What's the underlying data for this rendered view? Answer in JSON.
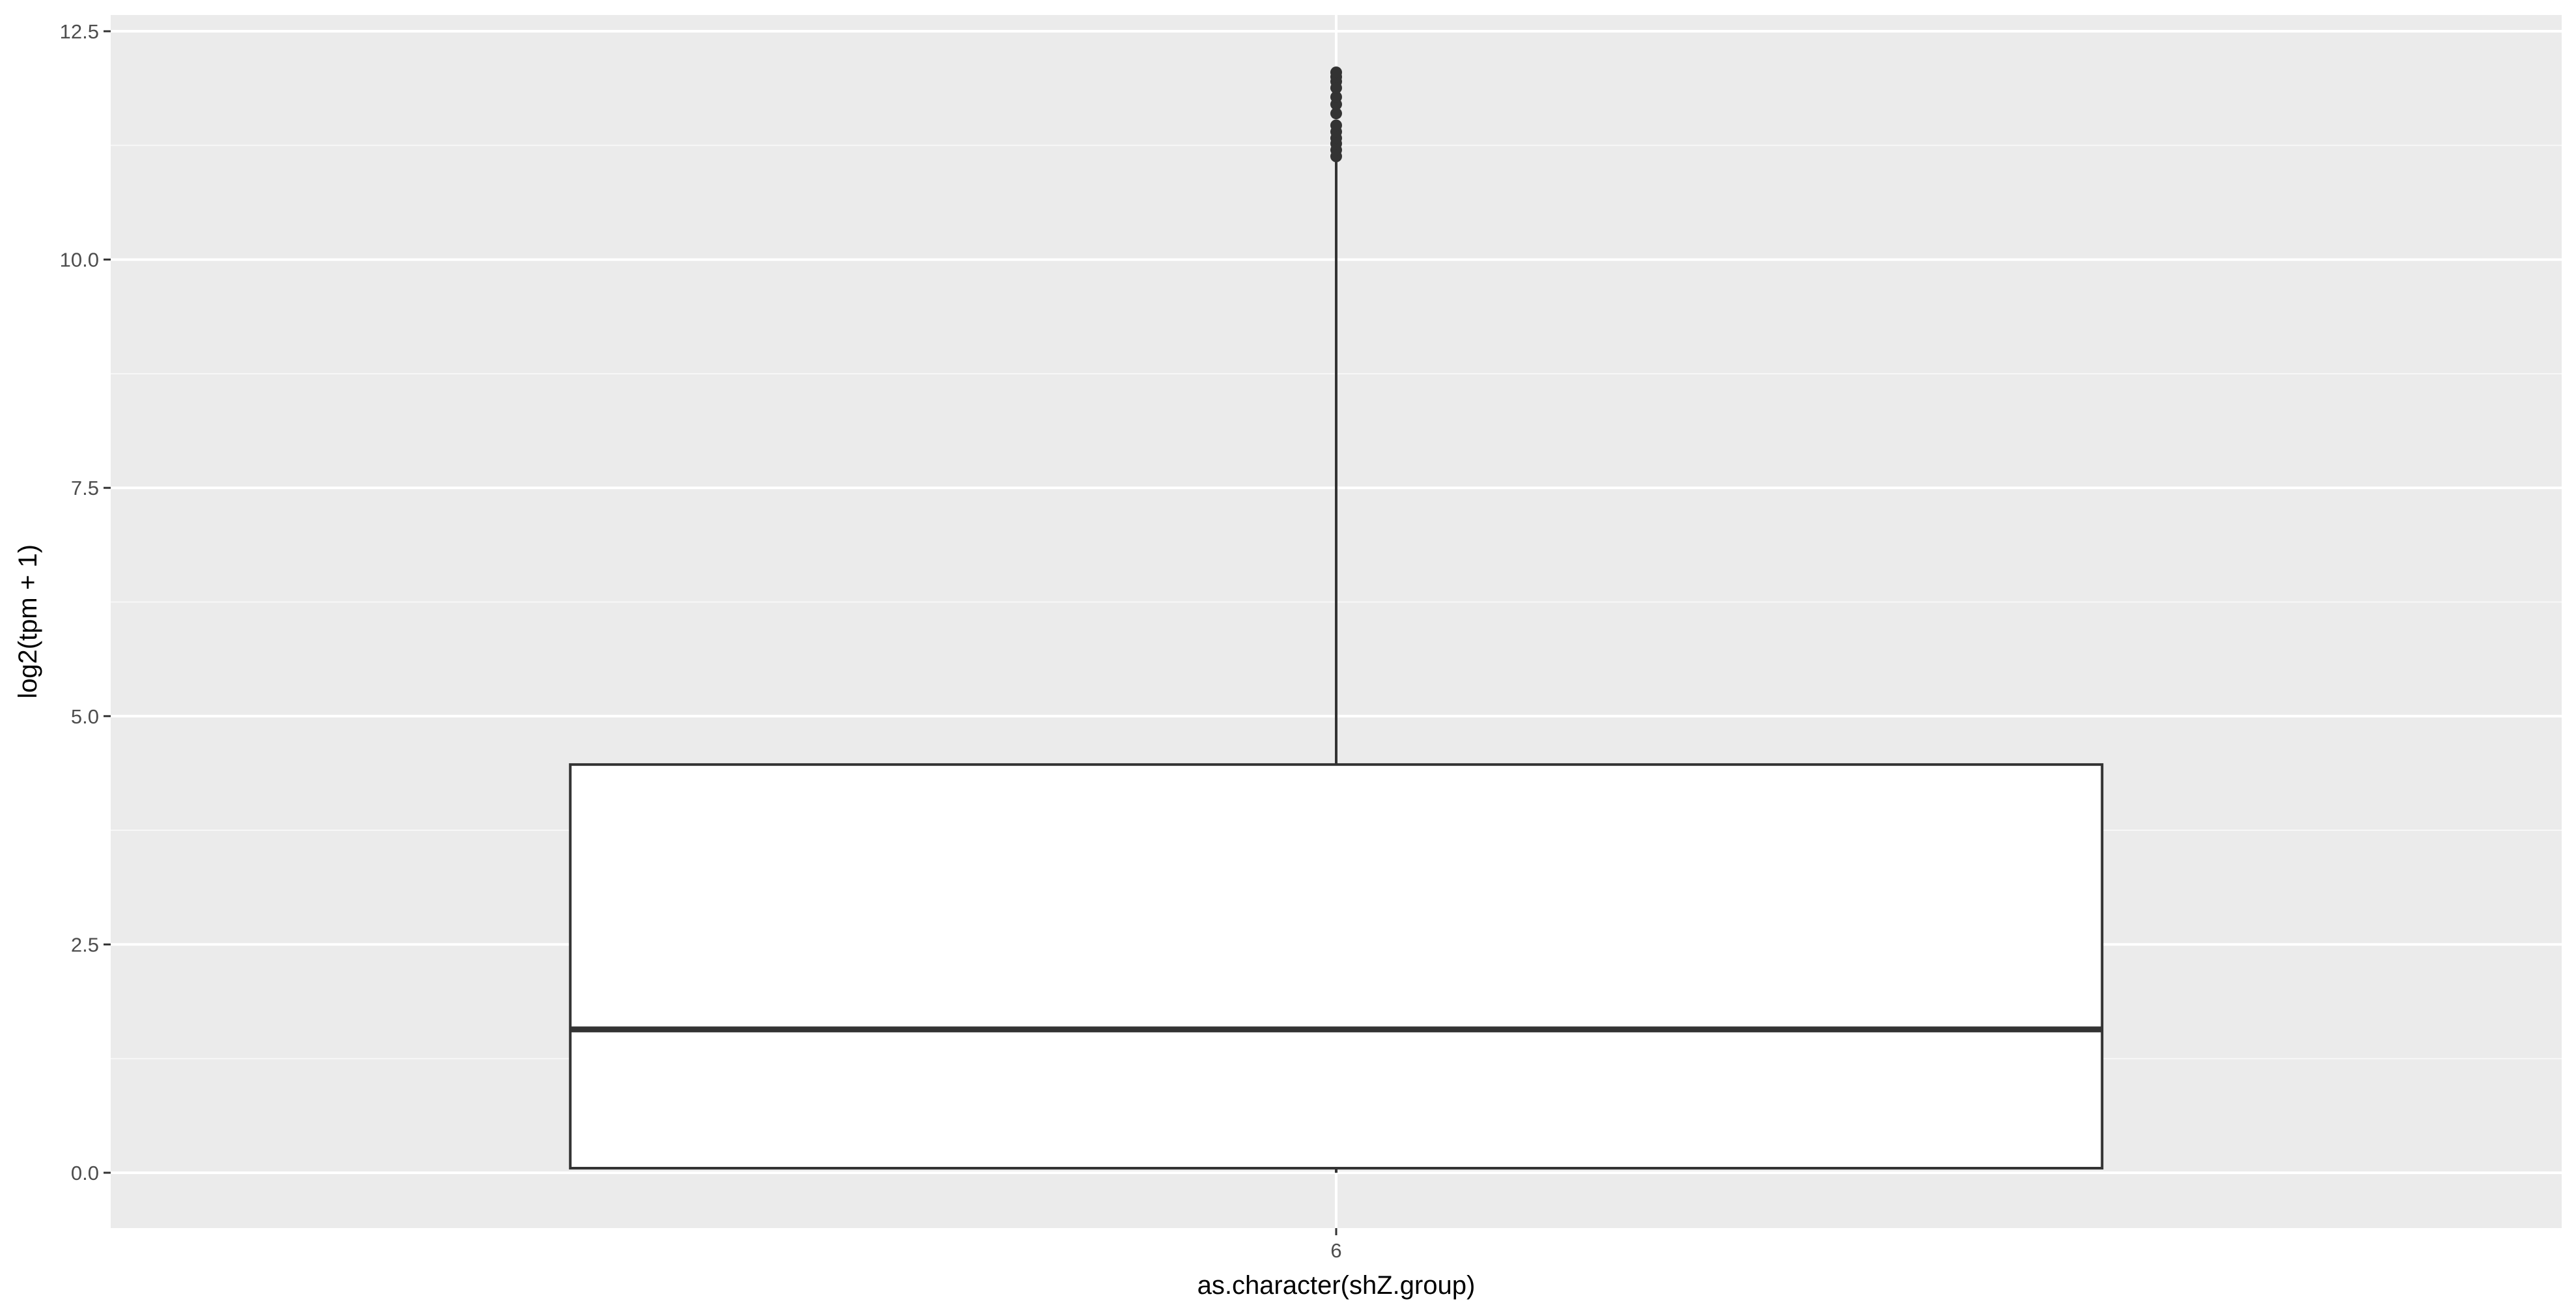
{
  "chart_data": {
    "type": "box",
    "xlabel": "as.character(shZ.group)",
    "ylabel": "log2(tpm + 1)",
    "categories": [
      "6"
    ],
    "ylim": [
      -0.6,
      12.7
    ],
    "yticks": [
      0.0,
      2.5,
      5.0,
      7.5,
      10.0,
      12.5
    ],
    "ytick_labels": [
      "0.0",
      "2.5",
      "5.0",
      "7.5",
      "10.0",
      "12.5"
    ],
    "boxes": [
      {
        "category": "6",
        "lower_whisker": 0.0,
        "q1": 0.05,
        "median": 1.57,
        "q3": 4.47,
        "upper_whisker": 11.1,
        "outliers": [
          11.13,
          11.2,
          11.27,
          11.33,
          11.4,
          11.47,
          11.6,
          11.7,
          11.78,
          11.88,
          11.95,
          12.0,
          12.05
        ]
      }
    ],
    "grid": true,
    "legend": "none",
    "colors": {
      "panel_background": "#ebebeb",
      "grid_major": "#ffffff",
      "grid_minor": "#f5f5f5",
      "box_fill": "#ffffff",
      "box_line": "#333333",
      "tick_text": "#4d4d4d",
      "title_text": "#000000"
    }
  }
}
